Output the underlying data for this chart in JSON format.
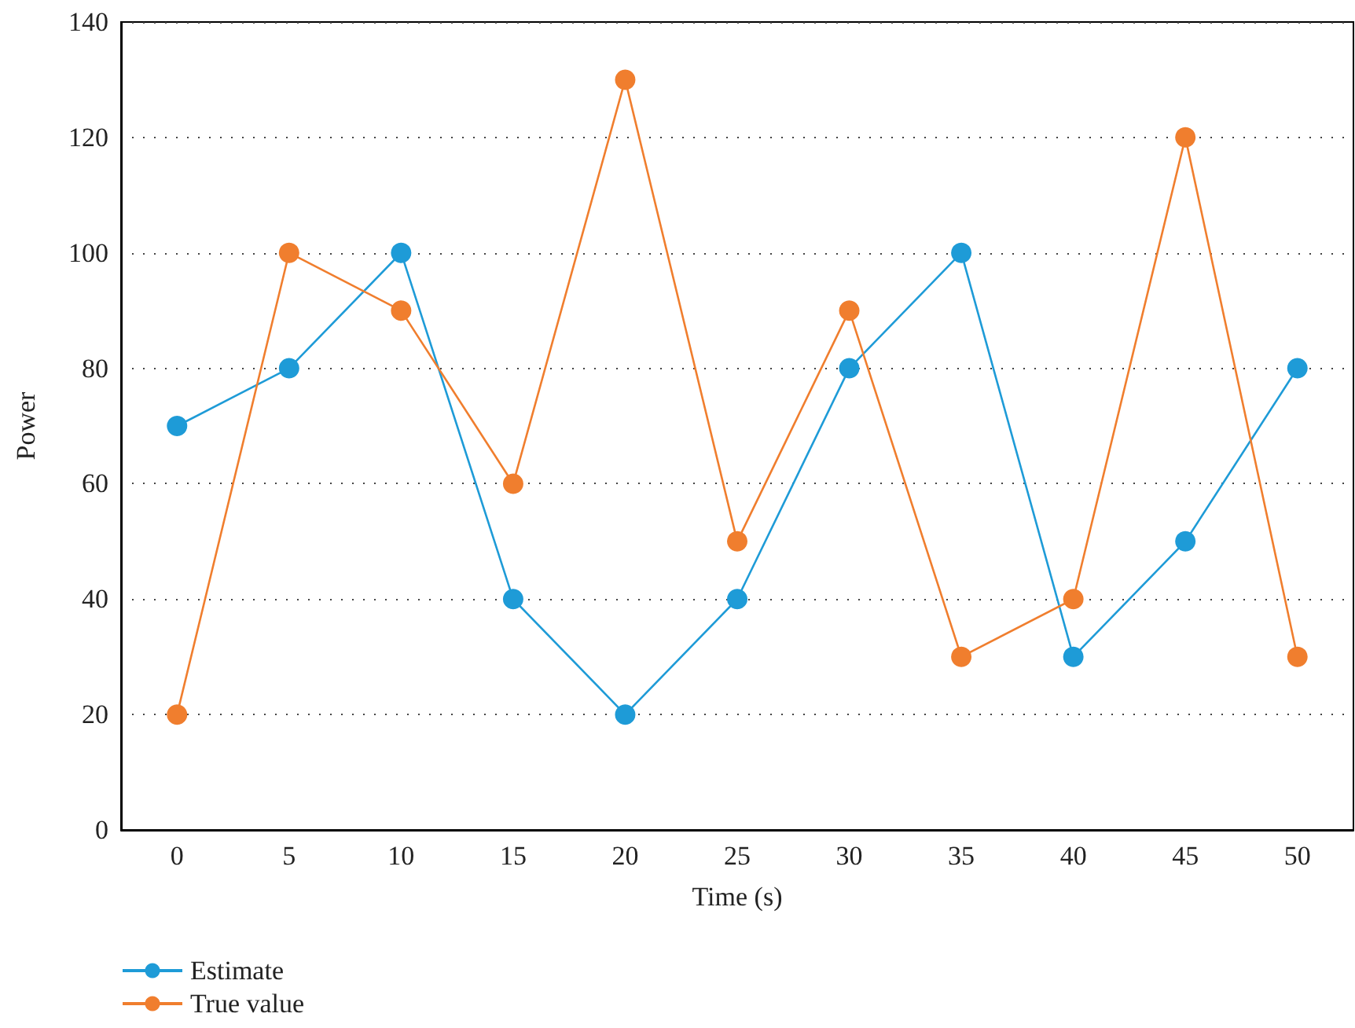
{
  "chart_data": {
    "type": "line",
    "xlabel": "Time (s)",
    "ylabel": "Power",
    "categories": [
      "0",
      "5",
      "10",
      "15",
      "20",
      "25",
      "30",
      "35",
      "40",
      "45",
      "50"
    ],
    "series": [
      {
        "name": "Estimate",
        "color": "#1e9bd7",
        "values": [
          70,
          80,
          100,
          40,
          20,
          40,
          80,
          100,
          30,
          50,
          80
        ]
      },
      {
        "name": "True value",
        "color": "#f07e2e",
        "values": [
          20,
          100,
          90,
          60,
          130,
          50,
          90,
          30,
          40,
          120,
          30
        ]
      }
    ],
    "ylim": [
      0,
      140
    ],
    "yticks": [
      0,
      20,
      40,
      60,
      80,
      100,
      120,
      140
    ],
    "grid": "y",
    "legend": "bottom left",
    "marker": "circle",
    "line_style": "solid"
  }
}
